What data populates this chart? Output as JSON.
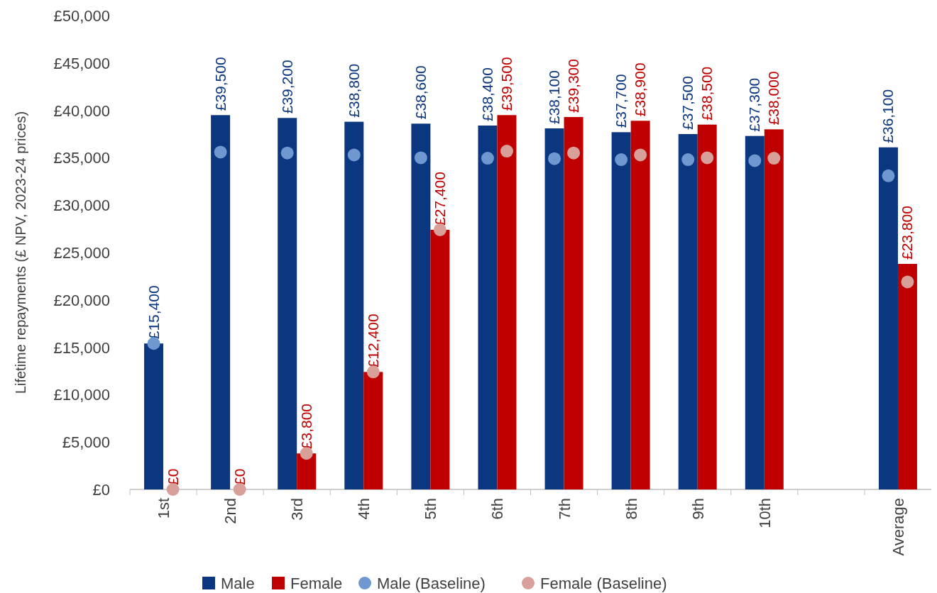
{
  "chart_data": {
    "type": "bar",
    "ylabel": "Lifetime repayments (£ NPV, 2023-24 prices)",
    "categories": [
      "1st",
      "2nd",
      "3rd",
      "4th",
      "5th",
      "6th",
      "7th",
      "8th",
      "9th",
      "10th",
      null,
      "Average"
    ],
    "series": [
      {
        "name": "Male",
        "color": "#0b3780",
        "values": [
          15400,
          39500,
          39200,
          38800,
          38600,
          38400,
          38100,
          37700,
          37500,
          37300,
          null,
          36100
        ],
        "value_labels": [
          "£15,400",
          "£39,500",
          "£39,200",
          "£38,800",
          "£38,600",
          "£38,400",
          "£38,100",
          "£37,700",
          "£37,500",
          "£37,300",
          null,
          "£36,100"
        ]
      },
      {
        "name": "Female",
        "color": "#c00000",
        "values": [
          0,
          0,
          3800,
          12400,
          27400,
          39500,
          39300,
          38900,
          38500,
          38000,
          null,
          23800
        ],
        "value_labels": [
          "£0",
          "£0",
          "£3,800",
          "£12,400",
          "£27,400",
          "£39,500",
          "£39,300",
          "£38,900",
          "£38,500",
          "£38,000",
          null,
          "£23,800"
        ]
      },
      {
        "name": "Male (Baseline)",
        "type": "scatter",
        "color": "#6f97d0",
        "x": [
          "1st",
          "2nd",
          "3rd",
          "4th",
          "5th",
          "6th",
          "7th",
          "8th",
          "9th",
          "10th",
          "Average"
        ],
        "values": [
          15400,
          35600,
          35500,
          35300,
          35000,
          34950,
          34900,
          34800,
          34800,
          34700,
          33100
        ]
      },
      {
        "name": "Female (Baseline)",
        "type": "scatter",
        "color": "#d9a09a",
        "x": [
          "1st",
          "2nd",
          "3rd",
          "4th",
          "5th",
          "6th",
          "7th",
          "8th",
          "9th",
          "10th",
          "Average"
        ],
        "values": [
          0,
          0,
          3800,
          12400,
          27400,
          35700,
          35500,
          35300,
          35000,
          34950,
          21900
        ]
      }
    ],
    "ylim": [
      0,
      50000
    ],
    "yticks": [
      {
        "value": 0,
        "label": "£0"
      },
      {
        "value": 5000,
        "label": "£5,000"
      },
      {
        "value": 10000,
        "label": "£10,000"
      },
      {
        "value": 15000,
        "label": "£15,000"
      },
      {
        "value": 20000,
        "label": "£20,000"
      },
      {
        "value": 25000,
        "label": "£25,000"
      },
      {
        "value": 30000,
        "label": "£30,000"
      },
      {
        "value": 35000,
        "label": "£35,000"
      },
      {
        "value": 40000,
        "label": "£40,000"
      },
      {
        "value": 45000,
        "label": "£45,000"
      },
      {
        "value": 50000,
        "label": "£50,000"
      }
    ],
    "legend": "bottom",
    "marker": "circle"
  }
}
